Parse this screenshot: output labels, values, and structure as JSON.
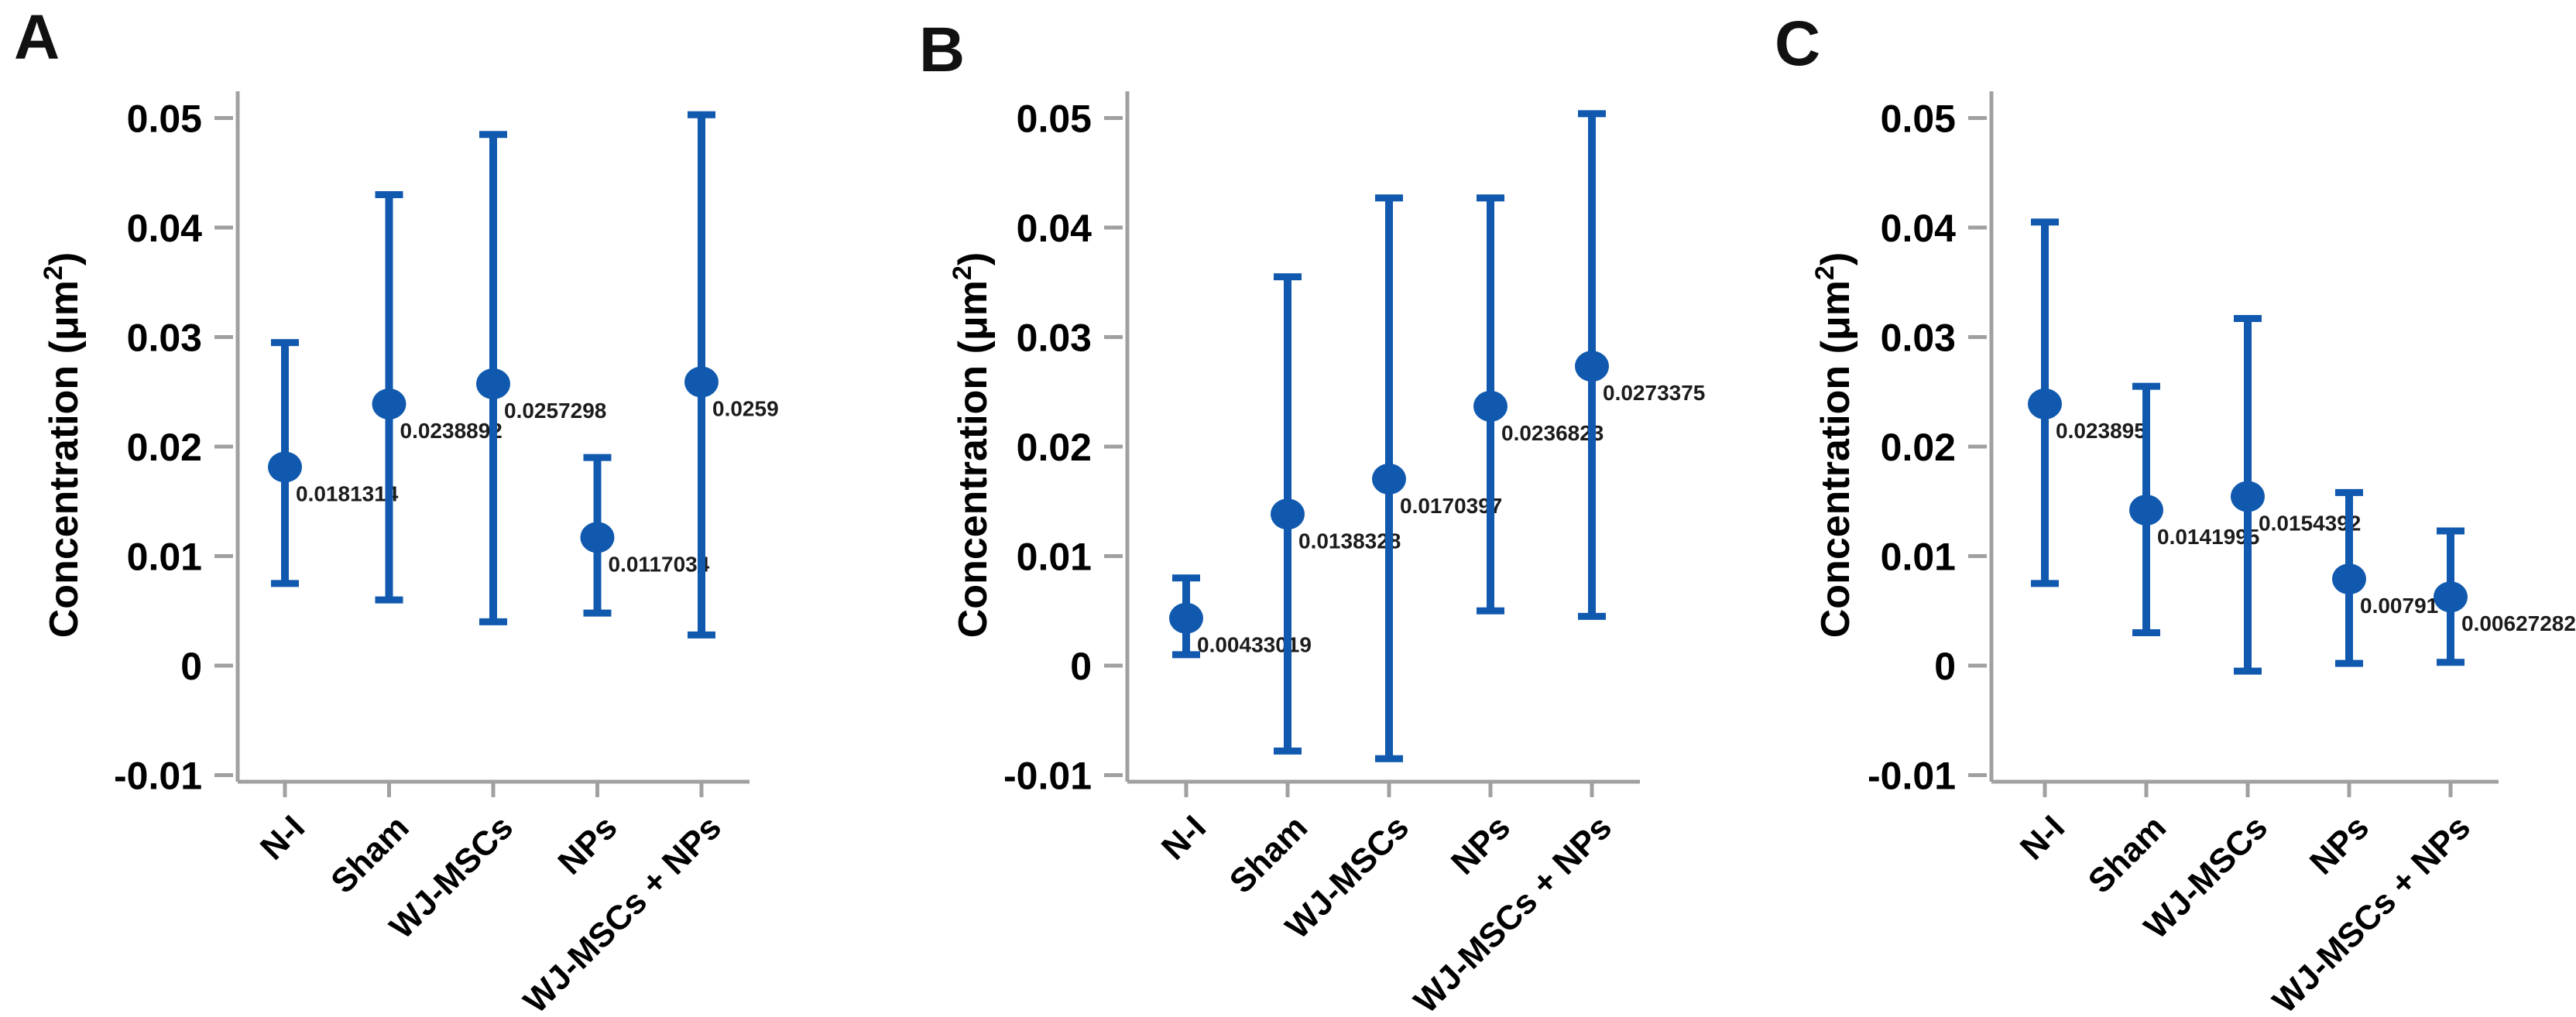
{
  "figure_title": "Concentration error-bar plots",
  "colors": {
    "marker_blue": "#1059ae",
    "axis_gray": "#a0a0a0",
    "tick_text": "#000000",
    "point_label_text": "#1c1c1c"
  },
  "figure": {
    "panels": [
      {
        "label": "A"
      },
      {
        "label": "B"
      },
      {
        "label": "C"
      }
    ]
  },
  "chart_data": [
    {
      "type": "scatter",
      "panel": "A",
      "title": "",
      "xlabel": "",
      "ylabel": "Concentration (μm²)",
      "ylim": [
        -0.01,
        0.05
      ],
      "yticks": [
        0.05,
        0.04,
        0.03,
        0.02,
        0.01,
        0,
        -0.01
      ],
      "ytick_labels": [
        "0.05",
        "0.04",
        "0.03",
        "0.02",
        "0.01",
        "0",
        "-0.01"
      ],
      "grid": false,
      "legend_position": "none",
      "categories": [
        "N-I",
        "Sham",
        "WJ-MSCs",
        "NPs",
        "WJ-MSCs + NPs"
      ],
      "series": [
        {
          "name": "mean",
          "values": [
            0.0181314,
            0.0238892,
            0.0257298,
            0.0117034,
            0.0259
          ]
        }
      ],
      "point_labels": [
        "0.0181314",
        "0.0238892",
        "0.0257298",
        "0.0117034",
        "0.0259"
      ],
      "error_upper": [
        0.0295,
        0.043,
        0.0485,
        0.019,
        0.0503
      ],
      "error_lower": [
        0.0075,
        0.006,
        0.004,
        0.0048,
        0.0028
      ]
    },
    {
      "type": "scatter",
      "panel": "B",
      "title": "",
      "xlabel": "",
      "ylabel": "Concentration (μm²)",
      "ylim": [
        -0.01,
        0.05
      ],
      "yticks": [
        0.05,
        0.04,
        0.03,
        0.02,
        0.01,
        0,
        -0.01
      ],
      "ytick_labels": [
        "0.05",
        "0.04",
        "0.03",
        "0.02",
        "0.01",
        "0",
        "-0.01"
      ],
      "grid": false,
      "legend_position": "none",
      "categories": [
        "N-I",
        "Sham",
        "WJ-MSCs",
        "NPs",
        "WJ-MSCs + NPs"
      ],
      "series": [
        {
          "name": "mean",
          "values": [
            0.00433019,
            0.0138328,
            0.0170397,
            0.0236823,
            0.0273375
          ]
        }
      ],
      "point_labels": [
        "0.00433019",
        "0.0138328",
        "0.0170397",
        "0.0236823",
        "0.0273375"
      ],
      "error_upper": [
        0.008,
        0.0355,
        0.0427,
        0.0427,
        0.0504
      ],
      "error_lower": [
        0.001,
        -0.0078,
        -0.0085,
        0.005,
        0.0045
      ]
    },
    {
      "type": "scatter",
      "panel": "C",
      "title": "",
      "xlabel": "",
      "ylabel": "Concentration (μm²)",
      "ylim": [
        -0.01,
        0.05
      ],
      "yticks": [
        0.05,
        0.04,
        0.03,
        0.02,
        0.01,
        0,
        -0.01
      ],
      "ytick_labels": [
        "0.05",
        "0.04",
        "0.03",
        "0.02",
        "0.01",
        "0",
        "-0.01"
      ],
      "grid": false,
      "legend_position": "none",
      "categories": [
        "N-I",
        "Sham",
        "WJ-MSCs",
        "NPs",
        "WJ-MSCs + NPs"
      ],
      "series": [
        {
          "name": "mean",
          "values": [
            0.023895,
            0.0141995,
            0.0154392,
            0.00791,
            0.00627282
          ]
        }
      ],
      "point_labels": [
        "0.023895",
        "0.0141995",
        "0.0154392",
        "0.00791",
        "0.00627282"
      ],
      "error_upper": [
        0.0405,
        0.0255,
        0.0317,
        0.0158,
        0.0123
      ],
      "error_lower": [
        0.0075,
        0.003,
        -0.0005,
        0.0002,
        0.0003
      ]
    }
  ]
}
